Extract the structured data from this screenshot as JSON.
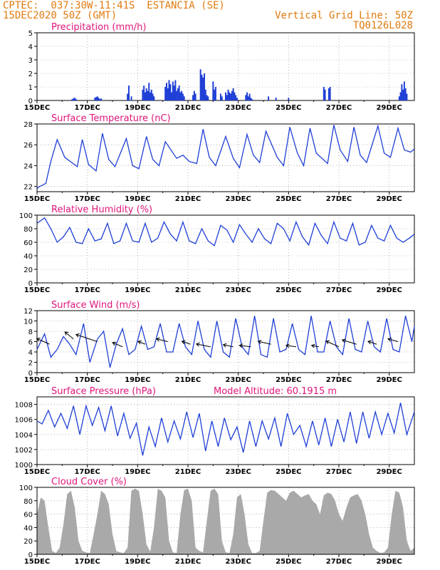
{
  "header": {
    "line1": "CPTEC:  037:30W-11:41S  ESTANCIA (SE)",
    "line2": "15DEC2020 50Z (GMT)",
    "right1": "Vertical Grid Line: 50Z",
    "right2": "TQ0126L028"
  },
  "colors": {
    "header": "#e07b10",
    "title": "#e0157a",
    "line": "#1f3fd6",
    "bar": "#1f3fd6",
    "cloud": "#a9a9a9",
    "grid": "#888888"
  },
  "x_tick_labels": [
    "15DEC",
    "17DEC",
    "19DEC",
    "21DEC",
    "23DEC",
    "25DEC",
    "27DEC",
    "29DEC"
  ],
  "x_day_range": [
    0,
    15
  ],
  "chart_data": [
    {
      "id": "precip",
      "type": "bar",
      "title": "Precipitation  (mm/h)",
      "ylim": [
        0,
        5
      ],
      "yticks": [
        "0",
        "1",
        "2",
        "3",
        "4",
        "5"
      ],
      "days": [
        1.4,
        1.45,
        1.5,
        1.55,
        2.3,
        2.35,
        2.4,
        2.45,
        2.5,
        2.55,
        3.6,
        3.65,
        3.75,
        4.2,
        4.25,
        4.3,
        4.35,
        4.4,
        4.45,
        4.5,
        4.55,
        4.6,
        4.65,
        5.1,
        5.15,
        5.2,
        5.25,
        5.3,
        5.35,
        5.4,
        5.45,
        5.5,
        5.55,
        5.6,
        5.65,
        5.7,
        5.75,
        5.8,
        5.85,
        6.2,
        6.25,
        6.3,
        6.5,
        6.55,
        6.6,
        6.65,
        6.7,
        6.75,
        6.8,
        7.0,
        7.05,
        7.1,
        7.3,
        7.35,
        7.5,
        7.55,
        7.6,
        7.65,
        7.7,
        7.75,
        7.8,
        7.85,
        7.9,
        7.95,
        8.3,
        8.35,
        8.4,
        8.45,
        8.5,
        8.55,
        9.2,
        9.5,
        10.0,
        11.4,
        11.45,
        11.6,
        11.65,
        14.4,
        14.45,
        14.5,
        14.55,
        14.6,
        14.65,
        14.7
      ],
      "values": [
        0.1,
        0.15,
        0.2,
        0.1,
        0.2,
        0.25,
        0.3,
        0.2,
        0.1,
        0.15,
        0.5,
        1.1,
        0.3,
        0.8,
        1.1,
        0.6,
        0.9,
        0.7,
        1.3,
        0.6,
        0.8,
        0.5,
        0.3,
        1.0,
        1.3,
        0.9,
        1.5,
        1.2,
        0.6,
        1.4,
        1.1,
        1.5,
        0.7,
        0.9,
        1.1,
        0.6,
        0.7,
        0.5,
        0.3,
        0.4,
        0.7,
        0.5,
        2.3,
        1.9,
        1.7,
        2.0,
        0.8,
        0.4,
        0.3,
        1.4,
        0.8,
        1.0,
        0.5,
        0.3,
        0.6,
        0.4,
        0.8,
        0.6,
        0.5,
        0.7,
        0.9,
        0.6,
        0.4,
        0.2,
        0.4,
        0.6,
        0.3,
        0.5,
        0.2,
        0.1,
        0.3,
        0.2,
        0.2,
        1.0,
        0.8,
        0.9,
        1.0,
        0.3,
        0.6,
        1.2,
        0.8,
        1.4,
        0.9,
        0.5
      ]
    },
    {
      "id": "temp",
      "type": "line",
      "title": "Surface Temperature (nC)",
      "ylim": [
        21.5,
        28
      ],
      "yticks": [
        "22",
        "24",
        "26",
        "28"
      ],
      "x": [
        0.0,
        0.1,
        0.2,
        0.35,
        0.55,
        0.8,
        1.1,
        1.6,
        1.8,
        2.05,
        2.35,
        2.6,
        2.85,
        3.1,
        3.55,
        3.8,
        4.05,
        4.35,
        4.6,
        4.85,
        5.1,
        5.55,
        5.8,
        6.05,
        6.35,
        6.6,
        6.85,
        7.1,
        7.5,
        7.8,
        8.05,
        8.35,
        8.6,
        8.85,
        9.1,
        9.55,
        9.8,
        10.05,
        10.35,
        10.6,
        10.85,
        11.1,
        11.55,
        11.8,
        12.05,
        12.35,
        12.6,
        12.85,
        13.1,
        13.55,
        13.8,
        14.05,
        14.35,
        14.6,
        14.85,
        15.0
      ],
      "y": [
        21.8,
        22.0,
        22.1,
        22.3,
        24.4,
        26.5,
        24.8,
        23.9,
        26.5,
        24.1,
        23.5,
        27.1,
        24.6,
        23.9,
        26.6,
        24.0,
        23.7,
        26.8,
        24.6,
        24.0,
        26.3,
        24.7,
        25.0,
        24.4,
        24.2,
        27.5,
        24.8,
        24.0,
        26.8,
        24.7,
        23.8,
        27.0,
        25.0,
        24.3,
        27.3,
        24.8,
        24.0,
        27.7,
        25.2,
        24.0,
        27.6,
        25.2,
        24.2,
        27.9,
        25.5,
        24.4,
        27.7,
        25.0,
        24.3,
        27.8,
        25.2,
        24.8,
        27.6,
        25.5,
        25.3,
        25.6
      ]
    },
    {
      "id": "rh",
      "type": "line",
      "title": "Relative Humidity (%)",
      "ylim": [
        0,
        100
      ],
      "yticks": [
        "0",
        "20",
        "40",
        "60",
        "80",
        "100"
      ],
      "x": [
        0.0,
        0.3,
        0.55,
        0.8,
        1.05,
        1.3,
        1.55,
        1.8,
        2.05,
        2.3,
        2.55,
        2.8,
        3.05,
        3.3,
        3.55,
        3.8,
        4.05,
        4.3,
        4.55,
        4.8,
        5.05,
        5.3,
        5.55,
        5.8,
        6.05,
        6.3,
        6.55,
        6.8,
        7.05,
        7.3,
        7.55,
        7.8,
        8.05,
        8.3,
        8.55,
        8.8,
        9.05,
        9.3,
        9.55,
        9.8,
        10.05,
        10.3,
        10.55,
        10.8,
        11.05,
        11.3,
        11.55,
        11.8,
        12.05,
        12.3,
        12.55,
        12.8,
        13.05,
        13.3,
        13.55,
        13.8,
        14.05,
        14.3,
        14.55,
        14.8,
        15.0
      ],
      "y": [
        88,
        96,
        80,
        60,
        68,
        82,
        60,
        58,
        80,
        62,
        65,
        88,
        58,
        62,
        88,
        62,
        60,
        88,
        60,
        66,
        90,
        72,
        62,
        90,
        62,
        58,
        80,
        62,
        55,
        85,
        78,
        60,
        86,
        72,
        60,
        80,
        65,
        58,
        88,
        80,
        62,
        90,
        68,
        56,
        88,
        70,
        58,
        90,
        66,
        62,
        88,
        56,
        60,
        85,
        66,
        62,
        85,
        66,
        60,
        66,
        72
      ]
    },
    {
      "id": "wind",
      "type": "line",
      "title": "Surface Wind (m/s)",
      "ylim": [
        0,
        12
      ],
      "yticks": [
        "0",
        "2",
        "4",
        "6",
        "8",
        "10",
        "12"
      ],
      "x": [
        0.0,
        0.3,
        0.55,
        0.8,
        1.05,
        1.3,
        1.55,
        1.85,
        2.1,
        2.4,
        2.65,
        2.9,
        3.15,
        3.4,
        3.65,
        3.9,
        4.15,
        4.4,
        4.65,
        4.9,
        5.15,
        5.4,
        5.65,
        5.9,
        6.15,
        6.4,
        6.65,
        6.9,
        7.15,
        7.4,
        7.65,
        7.9,
        8.15,
        8.4,
        8.65,
        8.9,
        9.15,
        9.4,
        9.65,
        9.9,
        10.15,
        10.4,
        10.65,
        10.9,
        11.15,
        11.4,
        11.65,
        11.9,
        12.15,
        12.4,
        12.65,
        12.9,
        13.15,
        13.4,
        13.65,
        13.9,
        14.15,
        14.4,
        14.65,
        14.9,
        15.0
      ],
      "y": [
        4.5,
        7.5,
        3.0,
        4.5,
        7.0,
        5.5,
        3.5,
        9.5,
        2.0,
        6.5,
        8.0,
        1.0,
        5.5,
        8.5,
        3.5,
        4.5,
        9.0,
        4.5,
        5.0,
        9.5,
        4.0,
        4.0,
        9.5,
        5.0,
        3.5,
        10.0,
        4.5,
        3.0,
        10.0,
        4.0,
        3.0,
        10.5,
        5.0,
        3.5,
        11.0,
        3.5,
        3.0,
        10.5,
        4.0,
        4.5,
        9.5,
        4.5,
        3.5,
        11.0,
        4.0,
        4.0,
        10.0,
        5.0,
        3.5,
        10.5,
        4.5,
        4.0,
        10.0,
        5.0,
        4.0,
        10.5,
        4.5,
        4.0,
        11.0,
        6.0,
        9.0
      ],
      "arrows_day": [
        0.5,
        1.45,
        2.4,
        3.4,
        4.3,
        5.2,
        6.1,
        6.9,
        7.8,
        8.5,
        9.3,
        10.3,
        11.2,
        12.0,
        12.7,
        13.5,
        14.35
      ],
      "arrows_speed": [
        5.5,
        6.5,
        6.0,
        5.0,
        5.5,
        6.0,
        5.5,
        5.0,
        5.0,
        5.0,
        5.5,
        5.0,
        5.0,
        5.0,
        5.5,
        5.5,
        6.0
      ],
      "arrows_dx": [
        -18,
        -12,
        -30,
        -14,
        -10,
        -16,
        -12,
        -20,
        -14,
        -16,
        -18,
        -14,
        -10,
        -18,
        -20,
        -12,
        -14
      ],
      "arrows_dy": [
        -8,
        -10,
        -10,
        -6,
        -4,
        -4,
        -4,
        -4,
        -3,
        -2,
        -4,
        -2,
        -2,
        -8,
        -6,
        -4,
        -4
      ]
    },
    {
      "id": "pres",
      "type": "line",
      "title": "Surface Pressure (hPa)",
      "annotation": "Model Altitude: 60.1915  m",
      "ylim": [
        1000,
        1009
      ],
      "yticks": [
        "1000",
        "1002",
        "1004",
        "1006",
        "1008"
      ],
      "x": [
        0.0,
        0.2,
        0.45,
        0.7,
        0.95,
        1.2,
        1.45,
        1.7,
        1.95,
        2.2,
        2.45,
        2.7,
        2.95,
        3.2,
        3.45,
        3.7,
        3.95,
        4.2,
        4.45,
        4.7,
        4.95,
        5.2,
        5.45,
        5.7,
        5.95,
        6.2,
        6.45,
        6.7,
        6.95,
        7.2,
        7.45,
        7.7,
        7.95,
        8.2,
        8.45,
        8.7,
        8.95,
        9.2,
        9.45,
        9.7,
        9.95,
        10.2,
        10.45,
        10.7,
        10.95,
        11.2,
        11.45,
        11.7,
        11.95,
        12.2,
        12.45,
        12.7,
        12.95,
        13.2,
        13.45,
        13.7,
        13.95,
        14.2,
        14.45,
        14.7,
        15.0
      ],
      "y": [
        1005.8,
        1005.4,
        1007.2,
        1005.0,
        1006.8,
        1004.8,
        1007.8,
        1004.0,
        1007.8,
        1005.2,
        1007.6,
        1004.5,
        1007.8,
        1003.8,
        1006.8,
        1003.5,
        1005.5,
        1001.2,
        1005.0,
        1002.4,
        1006.2,
        1003.0,
        1005.8,
        1003.4,
        1007.0,
        1003.6,
        1006.8,
        1001.8,
        1005.8,
        1002.4,
        1006.2,
        1003.3,
        1005.0,
        1001.6,
        1005.8,
        1002.4,
        1005.8,
        1003.4,
        1006.2,
        1002.4,
        1006.8,
        1004.0,
        1005.2,
        1002.4,
        1005.8,
        1002.6,
        1006.2,
        1002.4,
        1006.0,
        1003.0,
        1007.0,
        1002.8,
        1007.0,
        1003.5,
        1007.0,
        1004.0,
        1006.8,
        1004.2,
        1008.2,
        1004.0,
        1007.0
      ]
    },
    {
      "id": "cloud",
      "type": "area",
      "title": "Cloud Cover (%)",
      "ylim": [
        0,
        100
      ],
      "yticks": [
        "0",
        "20",
        "40",
        "60",
        "80",
        "100"
      ],
      "x": [
        0.0,
        0.15,
        0.3,
        0.45,
        0.6,
        0.75,
        0.9,
        1.05,
        1.2,
        1.35,
        1.5,
        1.65,
        1.8,
        1.95,
        2.1,
        2.25,
        2.4,
        2.55,
        2.7,
        2.85,
        3.0,
        3.15,
        3.3,
        3.45,
        3.6,
        3.75,
        3.9,
        4.05,
        4.2,
        4.35,
        4.5,
        4.65,
        4.8,
        4.95,
        5.1,
        5.25,
        5.4,
        5.55,
        5.7,
        5.85,
        6.0,
        6.15,
        6.3,
        6.45,
        6.6,
        6.75,
        6.9,
        7.05,
        7.2,
        7.35,
        7.5,
        7.65,
        7.8,
        7.95,
        8.1,
        8.25,
        8.4,
        8.55,
        8.7,
        8.85,
        9.0,
        9.15,
        9.3,
        9.45,
        9.6,
        9.75,
        9.9,
        10.05,
        10.2,
        10.35,
        10.5,
        10.65,
        10.8,
        10.95,
        11.1,
        11.25,
        11.4,
        11.55,
        11.7,
        11.85,
        12.0,
        12.15,
        12.3,
        12.45,
        12.6,
        12.75,
        12.9,
        13.05,
        13.2,
        13.35,
        13.5,
        13.65,
        13.8,
        13.95,
        14.1,
        14.25,
        14.4,
        14.55,
        14.7,
        14.85,
        15.0
      ],
      "y": [
        60,
        85,
        80,
        40,
        5,
        2,
        10,
        45,
        90,
        95,
        70,
        20,
        5,
        3,
        2,
        30,
        60,
        95,
        90,
        75,
        30,
        5,
        3,
        2,
        10,
        95,
        98,
        95,
        60,
        15,
        4,
        40,
        98,
        95,
        85,
        20,
        3,
        2,
        60,
        96,
        98,
        80,
        10,
        5,
        3,
        50,
        95,
        98,
        90,
        20,
        3,
        2,
        30,
        85,
        90,
        60,
        15,
        2,
        2,
        5,
        50,
        92,
        96,
        95,
        90,
        85,
        80,
        92,
        95,
        90,
        85,
        88,
        90,
        80,
        75,
        60,
        88,
        92,
        90,
        80,
        60,
        50,
        70,
        85,
        88,
        90,
        80,
        60,
        30,
        10,
        5,
        2,
        3,
        10,
        60,
        95,
        92,
        70,
        20,
        5,
        10
      ]
    }
  ]
}
